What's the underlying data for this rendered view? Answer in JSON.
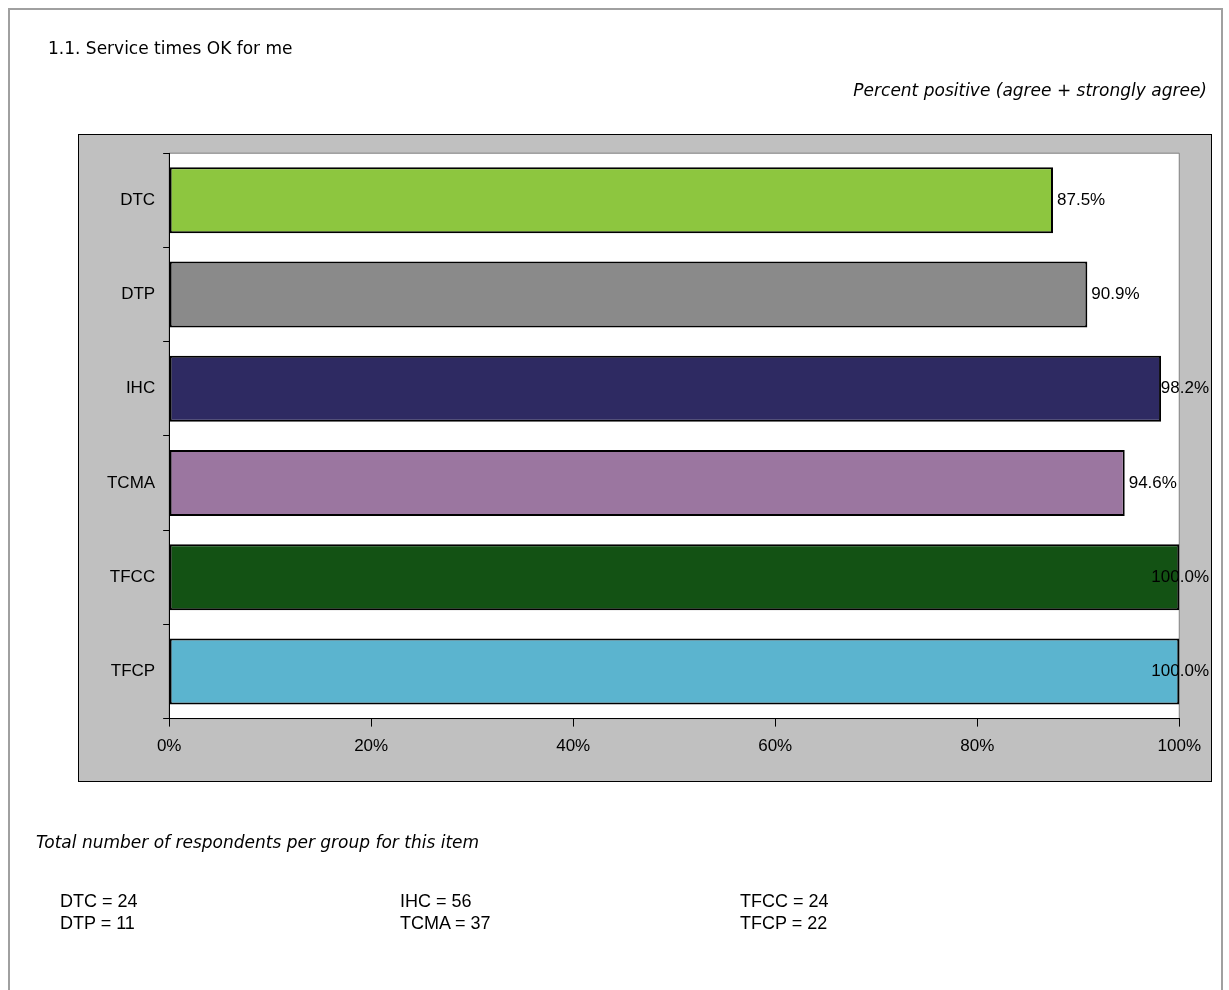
{
  "chart_data": {
    "type": "bar",
    "orientation": "horizontal",
    "title": "1.1. Service times OK for me",
    "subtitle": "Percent positive (agree + strongly agree)",
    "categories": [
      "DTC",
      "DTP",
      "IHC",
      "TCMA",
      "TFCC",
      "TFCP"
    ],
    "values": [
      87.5,
      90.9,
      98.2,
      94.6,
      100,
      100
    ],
    "colors": [
      "#8dc63f",
      "#8a8a8a",
      "#2e2a62",
      "#9b76a0",
      "#135214",
      "#5bb4cf"
    ],
    "value_labels": [
      "87.5%",
      "90.9%",
      "98.2%",
      "94.6%",
      "100.0%",
      "100.0%"
    ],
    "xlim": [
      0,
      100
    ],
    "xticks": [
      {
        "value": 0,
        "label": "0%"
      },
      {
        "value": 20,
        "label": "20%"
      },
      {
        "value": 40,
        "label": "40%"
      },
      {
        "value": 60,
        "label": "60%"
      },
      {
        "value": 80,
        "label": "80%"
      },
      {
        "value": 100,
        "label": "100%"
      }
    ],
    "grid": false,
    "legend": false,
    "annotations": [
      "Total number of respondents per group for this item",
      "DTC = 24",
      "IHC = 56",
      "TFCC = 24",
      "DTP = 11",
      "TCMA = 37",
      "TFCP = 22"
    ]
  }
}
